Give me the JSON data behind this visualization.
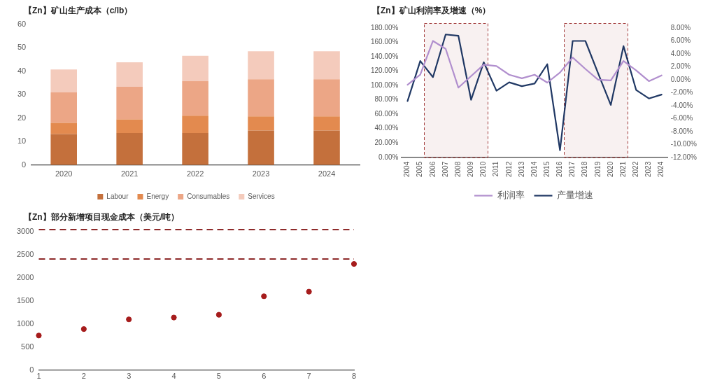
{
  "chart_data": [
    {
      "type": "bar",
      "title": "【Zn】矿山生产成本（c/lb）",
      "categories": [
        "2020",
        "2021",
        "2022",
        "2023",
        "2024"
      ],
      "stacked": true,
      "series": [
        {
          "name": "Labour",
          "color": "#c4703c",
          "values": [
            13.2,
            13.7,
            13.7,
            14.7,
            14.7
          ]
        },
        {
          "name": "Energy",
          "color": "#e38a4f",
          "values": [
            4.8,
            5.8,
            7.4,
            6.1,
            6.1
          ]
        },
        {
          "name": "Consumables",
          "color": "#eca686",
          "values": [
            13.0,
            13.9,
            14.7,
            15.8,
            15.8
          ]
        },
        {
          "name": "Services",
          "color": "#f4cbbc",
          "values": [
            9.8,
            10.5,
            10.8,
            12.0,
            12.0
          ]
        }
      ],
      "ylim": [
        0,
        60
      ],
      "yticks": [
        0,
        10,
        20,
        30,
        40,
        50,
        60
      ],
      "grid": false,
      "legend": "bottom"
    },
    {
      "type": "line",
      "title": "【Zn】矿山利润率及增速（%）",
      "x": [
        2004,
        2005,
        2006,
        2007,
        2008,
        2009,
        2010,
        2011,
        2012,
        2013,
        2014,
        2015,
        2016,
        2017,
        2018,
        2019,
        2020,
        2021,
        2022,
        2023,
        2024
      ],
      "series": [
        {
          "name": "利润率",
          "color": "#b18fce",
          "values": [
            101,
            115,
            162,
            151,
            97,
            113,
            129,
            127,
            115,
            110,
            115,
            104,
            118,
            139,
            123,
            108,
            107,
            134,
            121,
            106,
            114
          ]
        },
        {
          "name": "产量增速",
          "color": "#203864",
          "axis": "y2",
          "values": [
            -3.3,
            2.9,
            0.4,
            7.0,
            6.8,
            -3.1,
            2.7,
            -1.7,
            -0.4,
            -1.0,
            -0.6,
            2.4,
            -10.9,
            6.0,
            6.0,
            1.0,
            -3.9,
            5.2,
            -1.6,
            -2.9,
            -2.3
          ]
        }
      ],
      "xlim": [
        2003.5,
        2024.5
      ],
      "xticks": [
        2004,
        2005,
        2006,
        2007,
        2008,
        2009,
        2010,
        2011,
        2012,
        2013,
        2014,
        2015,
        2016,
        2017,
        2018,
        2019,
        2020,
        2021,
        2022,
        2023,
        2024
      ],
      "ylim": [
        0,
        180
      ],
      "yticks": [
        {
          "value": 0,
          "label": "0.00%"
        },
        {
          "value": 20,
          "label": "20.00%"
        },
        {
          "value": 40,
          "label": "40.00%"
        },
        {
          "value": 60,
          "label": "60.00%"
        },
        {
          "value": 80,
          "label": "80.00%"
        },
        {
          "value": 100,
          "label": "100.00%"
        },
        {
          "value": 120,
          "label": "120.00%"
        },
        {
          "value": 140,
          "label": "140.00%"
        },
        {
          "value": 160,
          "label": "160.00%"
        },
        {
          "value": 180,
          "label": "180.00%"
        }
      ],
      "y2lim": [
        -12,
        8
      ],
      "y2ticks": [
        {
          "value": -12,
          "label": "-12.00%"
        },
        {
          "value": -10,
          "label": "-10.00%"
        },
        {
          "value": -8,
          "label": "-8.00%"
        },
        {
          "value": -6,
          "label": "-6.00%"
        },
        {
          "value": -4,
          "label": "-4.00%"
        },
        {
          "value": -2,
          "label": "-2.00%"
        },
        {
          "value": 0,
          "label": "0.00%"
        },
        {
          "value": 2,
          "label": "2.00%"
        },
        {
          "value": 4,
          "label": "4.00%"
        },
        {
          "value": 6,
          "label": "6.00%"
        },
        {
          "value": 8,
          "label": "8.00%"
        }
      ],
      "bands": [
        {
          "axis": "x",
          "from": 2005.3,
          "to": 2010.3,
          "color": "#a23a3a"
        },
        {
          "axis": "x",
          "from": 2016.3,
          "to": 2021.3,
          "color": "#a23a3a"
        }
      ],
      "grid": false,
      "legend": "bottom",
      "marker": "none"
    },
    {
      "type": "scatter",
      "title": "【Zn】部分新增项目现金成本（美元/吨）",
      "x": [
        1,
        2,
        3,
        4,
        5,
        6,
        7,
        8
      ],
      "values": [
        750,
        890,
        1100,
        1140,
        1200,
        1600,
        1700,
        2300
      ],
      "color": "#a61c1c",
      "xlim": [
        1,
        8
      ],
      "xticks": [
        1,
        2,
        3,
        4,
        5,
        6,
        7,
        8
      ],
      "ylim": [
        0,
        3050
      ],
      "yticks": [
        0,
        500,
        1000,
        1500,
        2000,
        2500,
        3000
      ],
      "ref_lines": [
        {
          "axis": "y",
          "value": 3050,
          "color": "#8e2a2a",
          "line_style": "dashed"
        },
        {
          "axis": "y",
          "value": 2400,
          "color": "#8e2a2a",
          "line_style": "dashed"
        }
      ],
      "grid": false,
      "marker": "circle"
    }
  ]
}
